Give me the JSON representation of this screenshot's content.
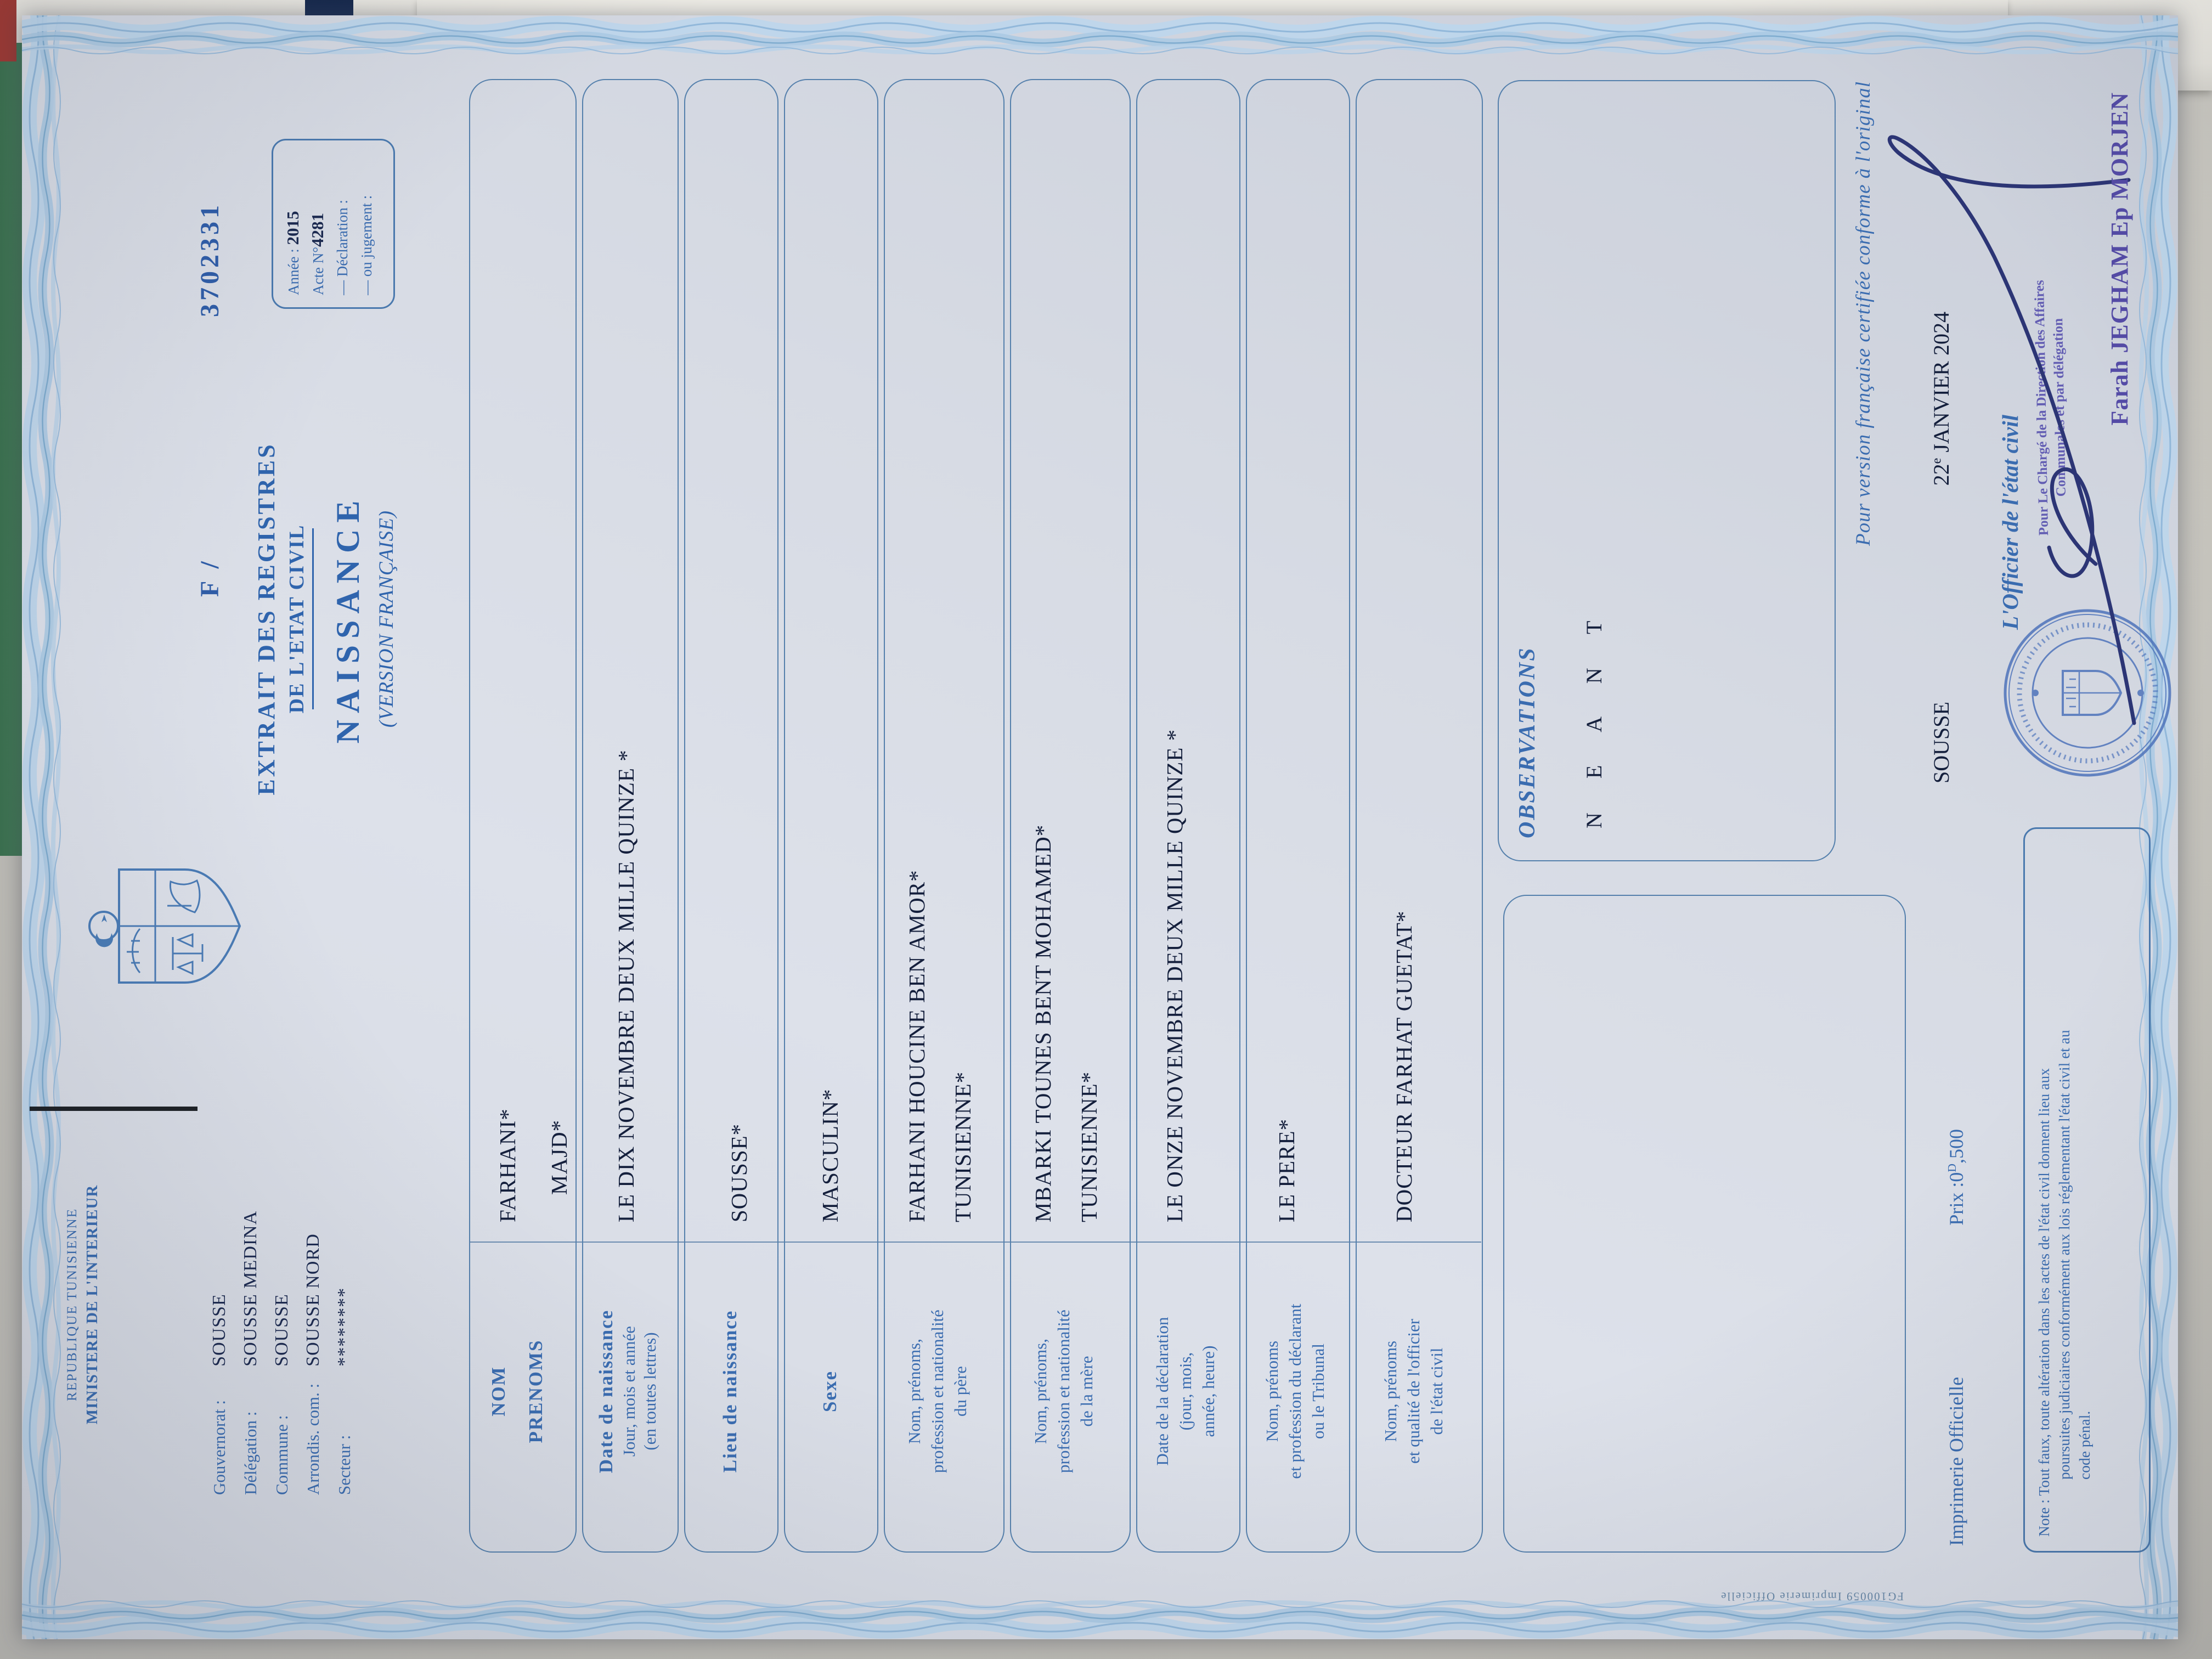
{
  "colors": {
    "print_blue": "#3a6cb0",
    "typed_navy": "#141f3c",
    "stamp_blue": "#4f74bb",
    "name_violet": "#544ba6",
    "paper": "#d9dde6"
  },
  "document": {
    "header": {
      "line1": "REPUBLIQUE TUNISIENNE",
      "line2": "MINISTERE DE L'INTERIEUR",
      "registry": [
        {
          "label": "Gouvernorat :",
          "value": "SOUSSE"
        },
        {
          "label": "Délégation :",
          "value": "SOUSSE MEDINA"
        },
        {
          "label": "Commune :",
          "value": "SOUSSE"
        },
        {
          "label": "Arrondis. com. :",
          "value": "SOUSSE NORD"
        },
        {
          "label": "Secteur :",
          "value": "********"
        }
      ]
    },
    "title": {
      "line1": "EXTRAIT DES REGISTRES",
      "line2": "DE L'ETAT CIVIL",
      "line3": "NAISSANCE",
      "line4": "(VERSION FRANÇAISE)"
    },
    "serial": {
      "prefix": "F /",
      "number": "3702331"
    },
    "acte_box": {
      "annee_label": "Année :",
      "annee_value": "2015",
      "acte_label": "Acte N°",
      "acte_value": "4281",
      "line3": "— Déclaration :",
      "line4": "— ou jugement :"
    },
    "rows": [
      {
        "l1": "NOM",
        "l2": "PRENOMS",
        "v1": "FARHANI*",
        "v2": "MAJD*"
      },
      {
        "l1": "Date de naissance",
        "l2": "Jour, mois et année",
        "l3": "(en toutes lettres)",
        "v1": "LE DIX NOVEMBRE  DEUX MILLE QUINZE *"
      },
      {
        "l1": "Lieu de naissance",
        "v1": "SOUSSE*"
      },
      {
        "l1": "Sexe",
        "v1": "MASCULIN*"
      },
      {
        "l1": "Nom, prénoms,",
        "l2": "profession et nationalité",
        "l3": "du père",
        "v1": "FARHANI HOUCINE BEN AMOR*",
        "v2": "TUNISIENNE*"
      },
      {
        "l1": "Nom, prénoms,",
        "l2": "profession et nationalité",
        "l3": "de la mère",
        "v1": "MBARKI TOUNES BENT MOHAMED*",
        "v2": "TUNISIENNE*"
      },
      {
        "l1": "Date de la déclaration",
        "l2": "(jour, mois,",
        "l3": "année, heure)",
        "v1": "LE ONZE NOVEMBRE  DEUX MILLE QUINZE *"
      },
      {
        "l1": "Nom, prénoms",
        "l2": "et profession du déclarant",
        "l3": "ou le Tribunal",
        "v1": "LE PERE*"
      },
      {
        "l1": "Nom, prénoms",
        "l2": "et qualité de l'officier",
        "l3": "de l'état civil",
        "v1": "DOCTEUR FARHAT GUETAT*"
      }
    ],
    "observations": {
      "label": "OBSERVATIONS",
      "value": "N E A N T"
    },
    "certification": {
      "pour_version": "Pour version française certifiée conforme à l'original",
      "city": "SOUSSE",
      "date_day": "22",
      "date_sup": "e",
      "date_rest": " JANVIER 2024",
      "officier": "L'Officier de l'état civil",
      "stamp_line1": "Pour Le Chargé de la Direction des Affaires",
      "stamp_line2": "Communales et par délégation",
      "signed_name": "Farah JEGHAM Ep MORJEN"
    },
    "footer": {
      "imprimerie": "Imprimerie Officielle",
      "prix_label": "Prix :0",
      "prix_sup": "D",
      "prix_rest": ",500",
      "note_l1": "Note : Tout faux, toute altération dans les actes de l'état civil donnent lieu aux",
      "note_l2": "poursuites judiciaires conformément aux lois réglementant l'état civil et au",
      "note_l3": "code pénal.",
      "edge_code": "FG100059   Imprimerie Officielle"
    }
  }
}
